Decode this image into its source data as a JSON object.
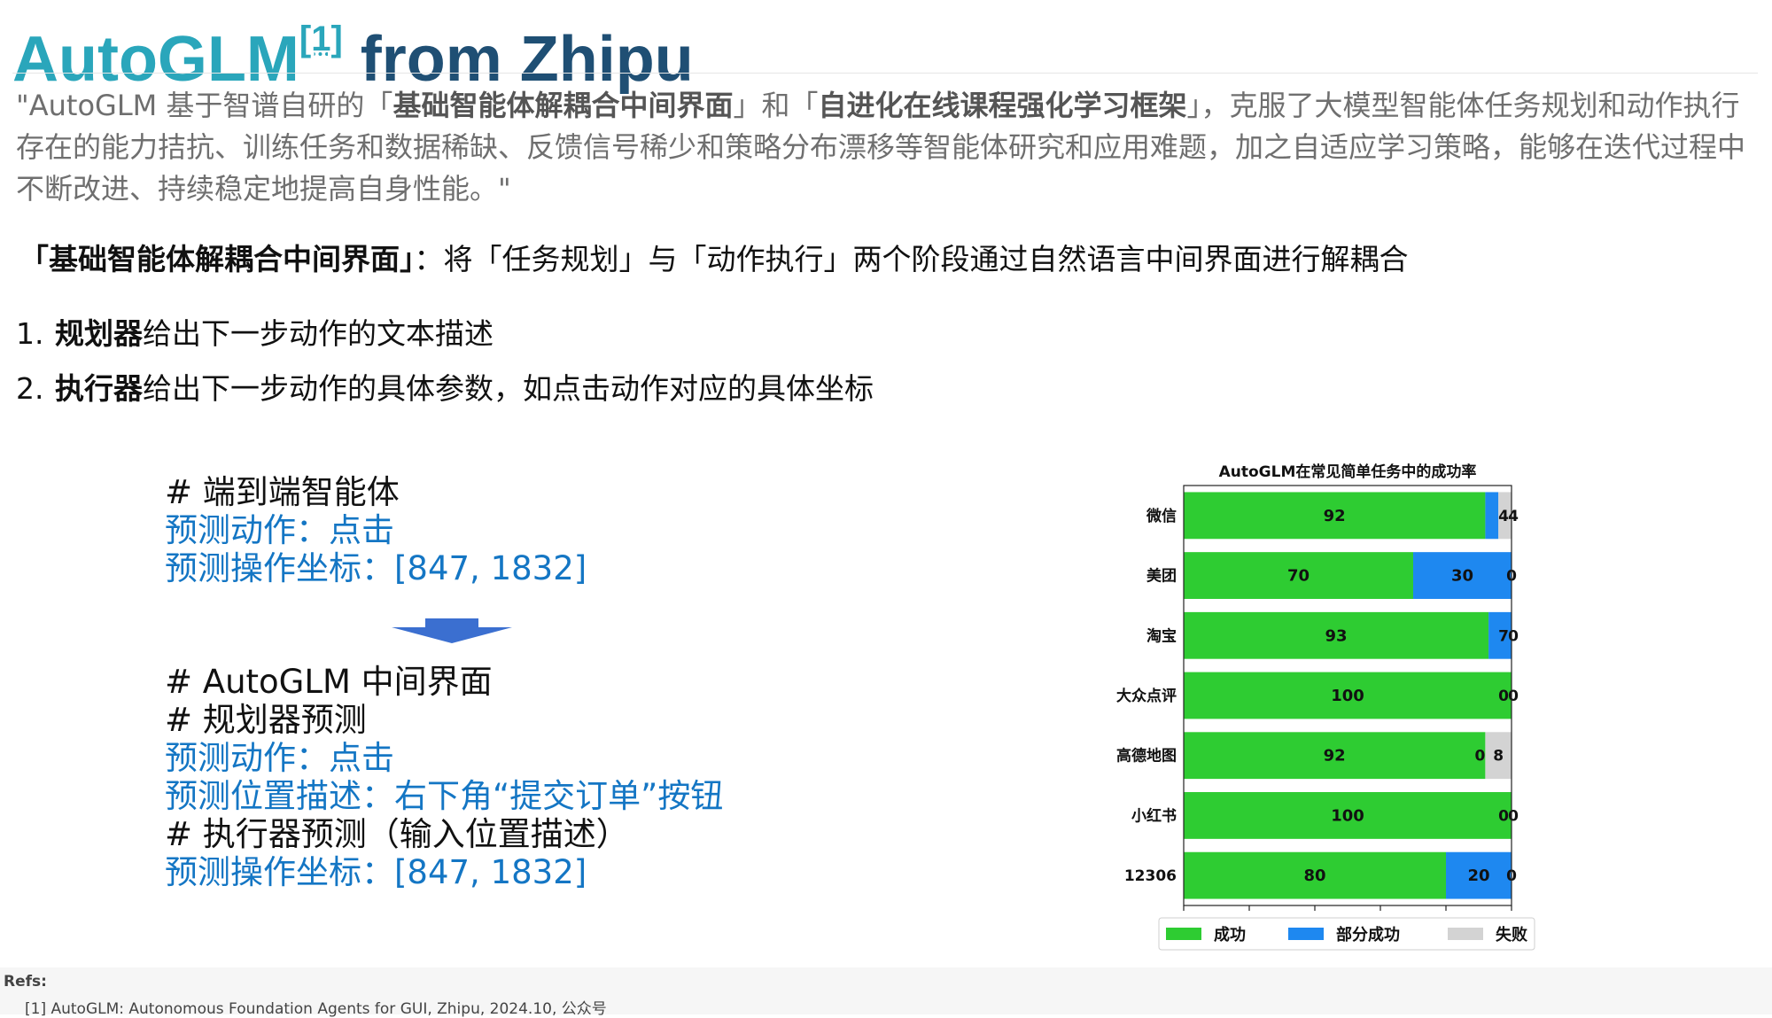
{
  "title": {
    "main": "AutoGLM",
    "ref": "[1]",
    "rest": " from Zhipu"
  },
  "quote": {
    "p1": "\"AutoGLM 基于智谱自研的「",
    "b1": "基础智能体解耦合中间界面",
    "p2": "」和「",
    "b2": "自进化在线课程强化学习框架",
    "p3": "」，克服了大模型智能体任务规划和动作执行存在的能力拮抗、训练任务和数据稀缺、反馈信号稀少和策略分布漂移等智能体研究和应用难题，加之自适应学习策略，能够在迭代过程中不断改进、持续稳定地提高自身性能。\""
  },
  "decouple": {
    "bold": "「基础智能体解耦合中间界面」",
    "text": "：将「任务规划」与「动作执行」两个阶段通过自然语言中间界面进行解耦合"
  },
  "steps": [
    {
      "num": "1.",
      "bold": "规划器",
      "text": "给出下一步动作的文本描述"
    },
    {
      "num": "2.",
      "bold": "执行器",
      "text": "给出下一步动作的具体参数，如点击动作对应的具体坐标"
    }
  ],
  "code_a": {
    "comment": "# 端到端智能体",
    "action": "预测动作：点击",
    "coords": "预测操作坐标：[847, 1832]"
  },
  "code_b": {
    "comment1": "# AutoGLM 中间界面",
    "comment2": "# 规划器预测",
    "action": "预测动作：点击",
    "position": "预测位置描述：右下角“提交订单”按钮",
    "comment3": "# 执行器预测（输入位置描述）",
    "coords": "预测操作坐标：[847, 1832]"
  },
  "colors": {
    "title_teal": "#2aa6bb",
    "title_navy": "#1f4f74",
    "code_blue": "#1476c4",
    "arrow_blue": "#3b6fd0",
    "success": "#2ecc32",
    "partial": "#1e88f0",
    "fail": "#d3d3d3"
  },
  "chart_data": {
    "type": "bar",
    "orientation": "horizontal",
    "stacked": true,
    "title": "AutoGLM在常见简单任务中的成功率",
    "categories": [
      "微信",
      "美团",
      "淘宝",
      "大众点评",
      "高德地图",
      "小红书",
      "12306"
    ],
    "series": [
      {
        "name": "成功",
        "values": [
          92,
          70,
          93,
          100,
          92,
          100,
          80
        ],
        "color": "#2ecc32"
      },
      {
        "name": "部分成功",
        "values": [
          4,
          30,
          7,
          0,
          0,
          0,
          20
        ],
        "color": "#1e88f0"
      },
      {
        "name": "失败",
        "values": [
          4,
          0,
          0,
          0,
          8,
          0,
          0
        ],
        "color": "#d3d3d3"
      }
    ],
    "xlim": [
      0,
      100
    ],
    "xticks": [
      0,
      20,
      40,
      60,
      80,
      100
    ],
    "legend_position": "bottom",
    "grid": false
  },
  "refs": {
    "label": "Refs:",
    "item": "[1] AutoGLM: Autonomous Foundation Agents for GUI, Zhipu, 2024.10, 公众号"
  }
}
